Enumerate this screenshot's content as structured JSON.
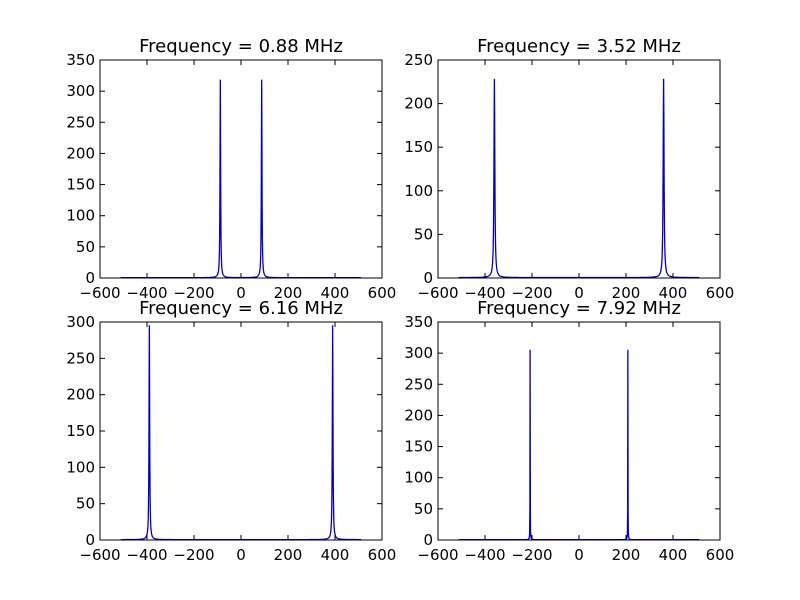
{
  "chart_data": [
    {
      "type": "line",
      "title": "Frequency = 0.88 MHz",
      "xlim": [
        -600,
        600
      ],
      "ylim": [
        0,
        350
      ],
      "xticks": [
        -600,
        -400,
        -200,
        0,
        200,
        400,
        600
      ],
      "yticks": [
        0,
        50,
        100,
        150,
        200,
        250,
        300,
        350
      ],
      "series": [
        {
          "color": "#0000cc",
          "x_range": [
            -512,
            511
          ],
          "baseline": 0.5,
          "peaks": [
            {
              "x": -88,
              "y": 318,
              "halfwidth": 1.5
            },
            {
              "x": 88,
              "y": 318,
              "halfwidth": 1.5
            }
          ]
        }
      ]
    },
    {
      "type": "line",
      "title": "Frequency = 3.52 MHz",
      "xlim": [
        -600,
        600
      ],
      "ylim": [
        0,
        250
      ],
      "xticks": [
        -600,
        -400,
        -200,
        0,
        200,
        400,
        600
      ],
      "yticks": [
        0,
        50,
        100,
        150,
        200,
        250
      ],
      "series": [
        {
          "color": "#0000cc",
          "x_range": [
            -512,
            511
          ],
          "baseline": 0.5,
          "peaks": [
            {
              "x": -360,
              "y": 228,
              "halfwidth": 2.2
            },
            {
              "x": 360,
              "y": 228,
              "halfwidth": 2.2
            }
          ]
        }
      ]
    },
    {
      "type": "line",
      "title": "Frequency = 6.16 MHz",
      "xlim": [
        -600,
        600
      ],
      "ylim": [
        0,
        300
      ],
      "xticks": [
        -600,
        -400,
        -200,
        0,
        200,
        400,
        600
      ],
      "yticks": [
        0,
        50,
        100,
        150,
        200,
        250,
        300
      ],
      "series": [
        {
          "color": "#0000cc",
          "x_range": [
            -512,
            511
          ],
          "baseline": 0.5,
          "peaks": [
            {
              "x": -390,
              "y": 295,
              "halfwidth": 1.6
            },
            {
              "x": 390,
              "y": 295,
              "halfwidth": 1.6
            }
          ]
        }
      ]
    },
    {
      "type": "line",
      "title": "Frequency = 7.92 MHz",
      "xlim": [
        -600,
        600
      ],
      "ylim": [
        0,
        350
      ],
      "xticks": [
        -600,
        -400,
        -200,
        0,
        200,
        400,
        600
      ],
      "yticks": [
        0,
        50,
        100,
        150,
        200,
        250,
        300,
        350
      ],
      "series": [
        {
          "color": "#0000cc",
          "x_range": [
            -512,
            511
          ],
          "baseline": 0.5,
          "peaks": [
            {
              "x": -208,
              "y": 305,
              "halfwidth": 0.4
            },
            {
              "x": 208,
              "y": 305,
              "halfwidth": 0.4
            }
          ]
        }
      ]
    }
  ]
}
